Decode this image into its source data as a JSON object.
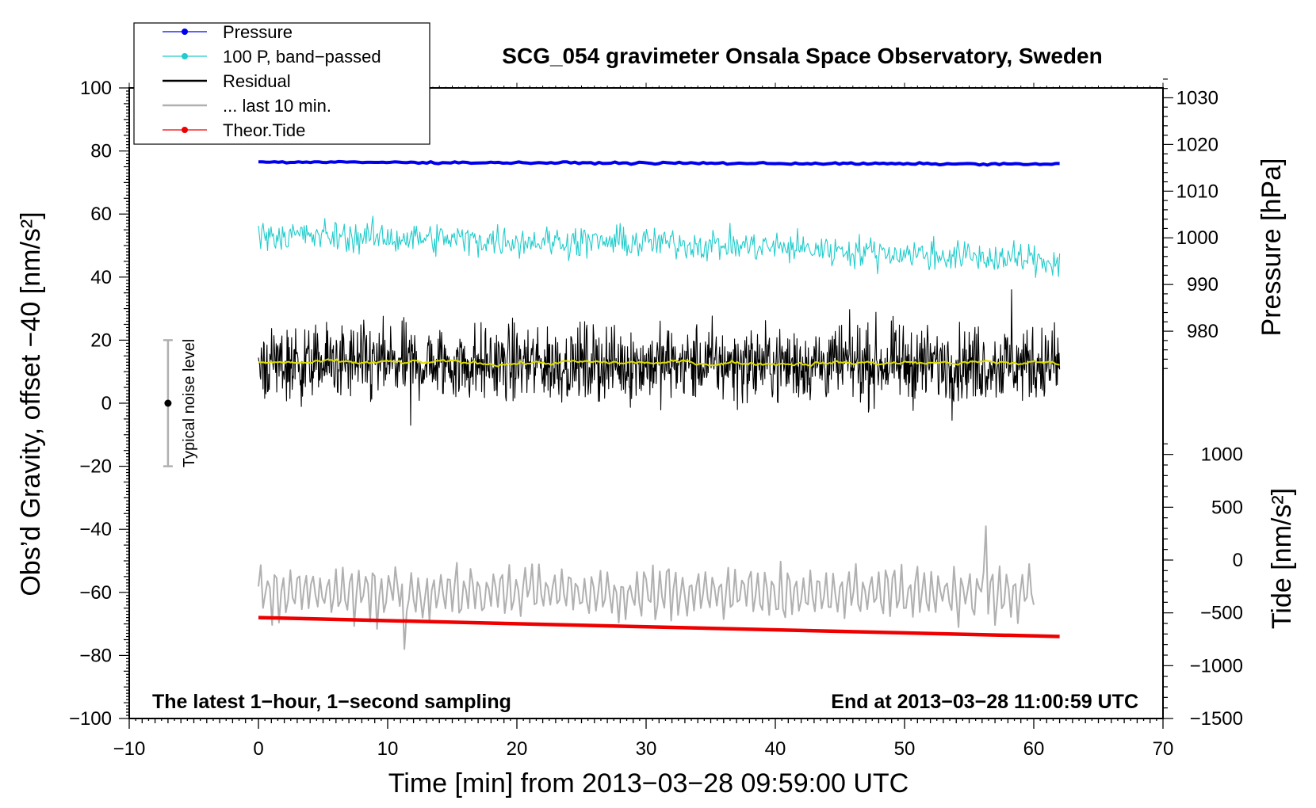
{
  "chart_data": {
    "type": "line",
    "title": "SCG_054 gravimeter Onsala Space Observatory, Sweden",
    "xlabel": "Time [min] from 2013−03−28 09:59:00 UTC",
    "ylabel_left": "Obs’d Gravity, offset −40 [nm/s²]",
    "ylabel_pressure": "Pressure [hPa]",
    "ylabel_tide": "Tide [nm/s²]",
    "xlim": [
      -10,
      70
    ],
    "ylim": [
      -100,
      100
    ],
    "pressure_lim": [
      970,
      1035
    ],
    "tide_lim": [
      -1500,
      1500
    ],
    "x_ticks": [
      -10,
      0,
      10,
      20,
      30,
      40,
      50,
      60,
      70
    ],
    "x_tick_labels": [
      "−10",
      "0",
      "10",
      "20",
      "30",
      "40",
      "50",
      "60",
      "70"
    ],
    "y_ticks": [
      -100,
      -80,
      -60,
      -40,
      -20,
      0,
      20,
      40,
      60,
      80,
      100
    ],
    "y_tick_labels": [
      "−100",
      "−80",
      "−60",
      "−40",
      "−20",
      "0",
      "20",
      "40",
      "60",
      "80",
      "100"
    ],
    "pressure_ticks": [
      980,
      990,
      1000,
      1010,
      1020,
      1030
    ],
    "pressure_tick_labels": [
      "980",
      "990",
      "1000",
      "1010",
      "1020",
      "1030"
    ],
    "tide_ticks": [
      -1500,
      -1000,
      -500,
      0,
      500,
      1000
    ],
    "tide_tick_labels": [
      "−1500",
      "−1000",
      "−500",
      "0",
      "500",
      "1000"
    ],
    "legend": [
      {
        "label": "Pressure",
        "color": "#0000ee",
        "marker": true
      },
      {
        "label": "100 P, band−passed",
        "color": "#22cccc",
        "marker": true
      },
      {
        "label": "Residual",
        "color": "#000000",
        "marker": false
      },
      {
        "label": "... last 10 min.",
        "color": "#b0b0b0",
        "marker": false
      },
      {
        "label": "Theor.Tide",
        "color": "#ee0000",
        "marker": true
      }
    ],
    "series": [
      {
        "name": "Pressure",
        "axis": "left",
        "color": "#0000ee",
        "x": [
          0,
          62
        ],
        "y": [
          76.5,
          75.8
        ],
        "noise": 0.15
      },
      {
        "name": "100 P, band-passed",
        "axis": "left",
        "color": "#22cccc",
        "x": [
          0,
          10,
          20,
          30,
          40,
          50,
          62
        ],
        "y": [
          53.5,
          52.5,
          51.5,
          51,
          49.5,
          47.5,
          45
        ],
        "noise": 2.5
      },
      {
        "name": "Residual",
        "axis": "left",
        "color": "#000000",
        "x": [
          0,
          62
        ],
        "y": [
          12.5,
          12.5
        ],
        "noise": 6,
        "extremes": [
          -7,
          36
        ]
      },
      {
        "name": "Residual smoothed",
        "axis": "left",
        "color": "#dddd00",
        "x": [
          0,
          62
        ],
        "y": [
          12.8,
          12.8
        ],
        "noise": 0.4
      },
      {
        "name": "... last 10 min.",
        "axis": "left",
        "color": "#b0b0b0",
        "x": [
          0,
          60
        ],
        "y": [
          -60,
          -60
        ],
        "noise": 6,
        "extremes": [
          -78,
          -39
        ]
      },
      {
        "name": "Theor.Tide",
        "axis": "left",
        "color": "#ee0000",
        "x": [
          0,
          62
        ],
        "y": [
          -68,
          -74
        ]
      }
    ],
    "noise_bar": {
      "label": "Typical noise level",
      "x": -7,
      "center": 0,
      "low": -20,
      "high": 20
    },
    "annotation_left": "The latest 1−hour, 1−second sampling",
    "annotation_right": "End at 2013−03−28 11:00:59 UTC"
  }
}
